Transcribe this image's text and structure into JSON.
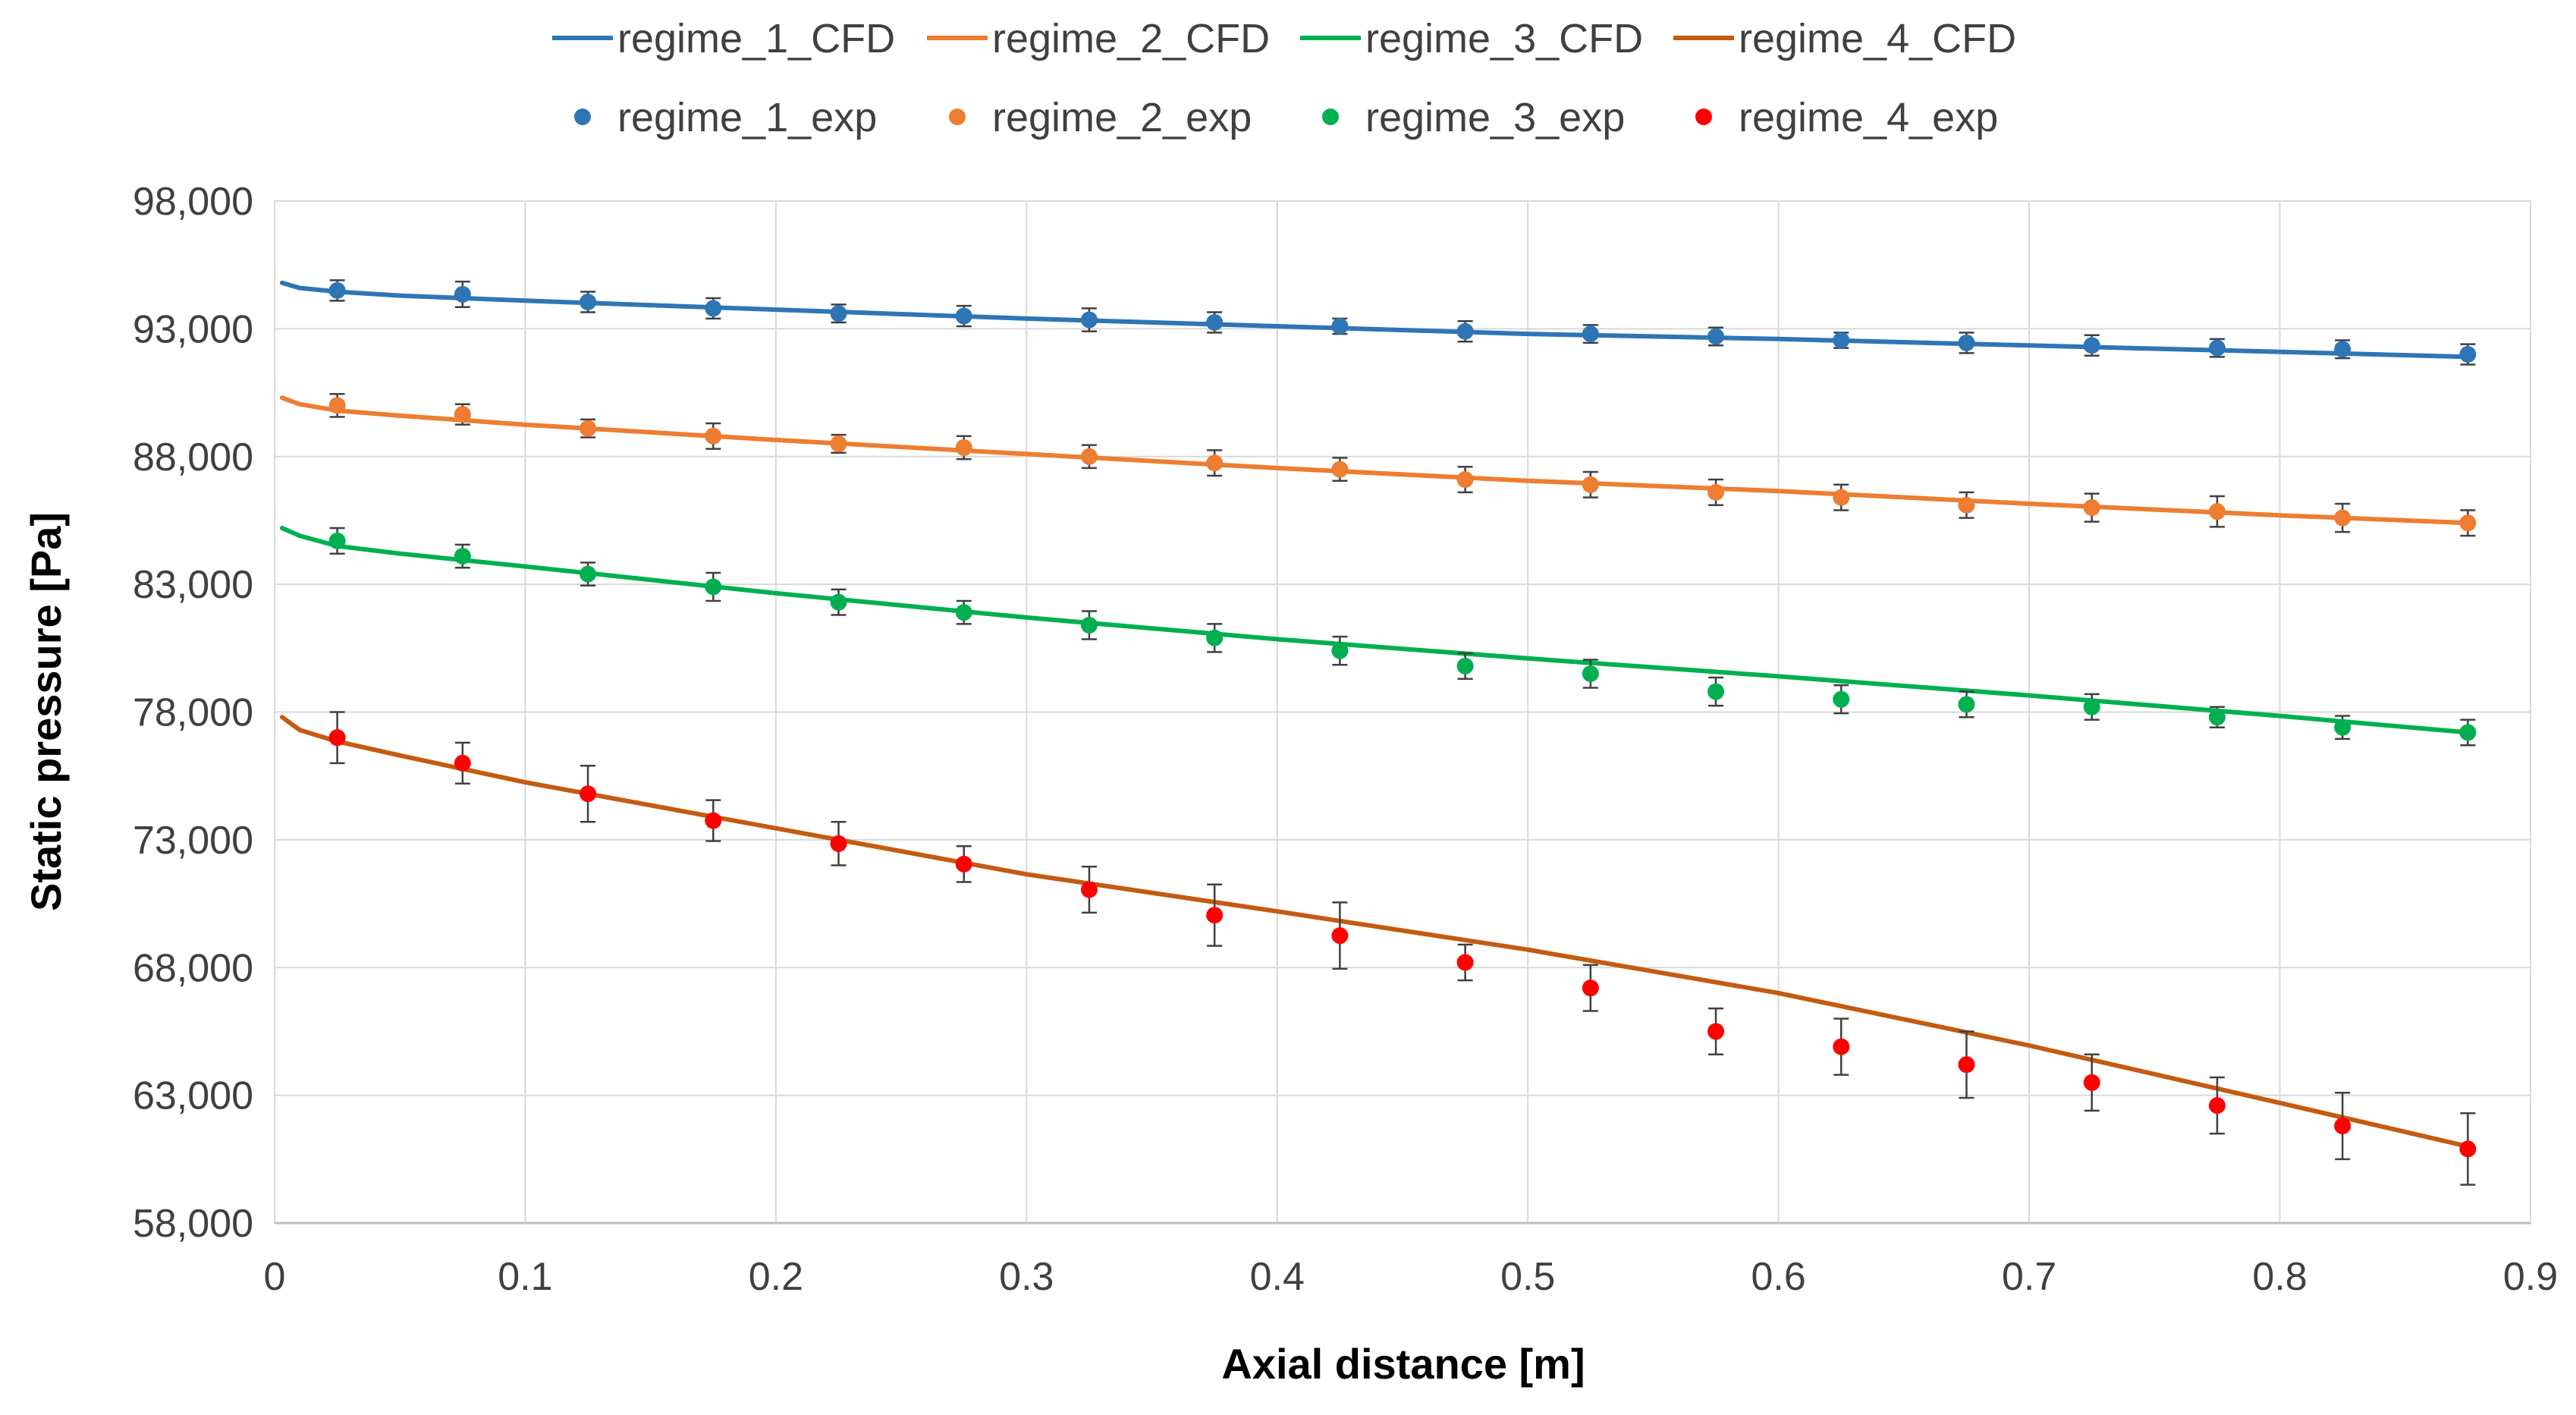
{
  "chart_data": {
    "type": "line",
    "xlabel": "Axial distance [m]",
    "ylabel": "Static pressure [Pa]",
    "xlim": [
      0,
      0.9
    ],
    "ylim": [
      58000,
      98000
    ],
    "x_ticks": [
      0,
      0.1,
      0.2,
      0.3,
      0.4,
      0.5,
      0.6,
      0.7,
      0.8,
      0.9
    ],
    "y_ticks": [
      58000,
      63000,
      68000,
      73000,
      78000,
      83000,
      88000,
      93000,
      98000
    ],
    "x_tick_labels": [
      "0",
      "0.1",
      "0.2",
      "0.3",
      "0.4",
      "0.5",
      "0.6",
      "0.7",
      "0.8",
      "0.9"
    ],
    "y_tick_labels": [
      "58,000",
      "63,000",
      "68,000",
      "73,000",
      "78,000",
      "83,000",
      "88,000",
      "93,000",
      "98,000"
    ],
    "grid": true,
    "legend_position": "top",
    "exp_x": [
      0.025,
      0.075,
      0.125,
      0.175,
      0.225,
      0.275,
      0.325,
      0.375,
      0.425,
      0.475,
      0.525,
      0.575,
      0.625,
      0.675,
      0.725,
      0.775,
      0.825,
      0.875
    ],
    "series": [
      {
        "name": "regime_1_CFD",
        "kind": "line",
        "color": "#2E75B6",
        "x": [
          0.003,
          0.01,
          0.025,
          0.05,
          0.1,
          0.2,
          0.3,
          0.4,
          0.5,
          0.6,
          0.7,
          0.8,
          0.875
        ],
        "y": [
          94800,
          94600,
          94450,
          94300,
          94100,
          93750,
          93400,
          93100,
          92800,
          92600,
          92350,
          92100,
          91900
        ]
      },
      {
        "name": "regime_2_CFD",
        "kind": "line",
        "color": "#ED7D31",
        "x": [
          0.003,
          0.01,
          0.025,
          0.05,
          0.1,
          0.2,
          0.3,
          0.4,
          0.5,
          0.6,
          0.7,
          0.8,
          0.875
        ],
        "y": [
          90300,
          90050,
          89800,
          89600,
          89250,
          88650,
          88100,
          87550,
          87050,
          86650,
          86150,
          85700,
          85400
        ]
      },
      {
        "name": "regime_3_CFD",
        "kind": "line",
        "color": "#00B050",
        "x": [
          0.003,
          0.01,
          0.025,
          0.05,
          0.1,
          0.2,
          0.3,
          0.4,
          0.5,
          0.6,
          0.7,
          0.8,
          0.875
        ],
        "y": [
          85200,
          84900,
          84500,
          84200,
          83700,
          82650,
          81700,
          80850,
          80100,
          79400,
          78650,
          77850,
          77200
        ]
      },
      {
        "name": "regime_4_CFD",
        "kind": "line",
        "color": "#C55A11",
        "x": [
          0.003,
          0.01,
          0.025,
          0.05,
          0.1,
          0.2,
          0.3,
          0.4,
          0.5,
          0.6,
          0.7,
          0.8,
          0.875
        ],
        "y": [
          77800,
          77300,
          76850,
          76300,
          75250,
          73450,
          71650,
          70200,
          68700,
          67000,
          64950,
          62700,
          61000
        ]
      },
      {
        "name": "regime_1_exp",
        "kind": "points",
        "color": "#2E75B6",
        "y": [
          94500,
          94350,
          94050,
          93800,
          93600,
          93500,
          93350,
          93250,
          93100,
          92900,
          92800,
          92700,
          92550,
          92450,
          92350,
          92250,
          92200,
          92000
        ],
        "err": [
          400,
          500,
          400,
          400,
          350,
          400,
          450,
          400,
          300,
          400,
          350,
          350,
          300,
          400,
          400,
          350,
          350,
          400
        ]
      },
      {
        "name": "regime_2_exp",
        "kind": "points",
        "color": "#ED7D31",
        "y": [
          90000,
          89650,
          89100,
          88800,
          88500,
          88350,
          88000,
          87750,
          87500,
          87100,
          86900,
          86600,
          86400,
          86100,
          86000,
          85850,
          85600,
          85400
        ],
        "err": [
          450,
          400,
          350,
          500,
          350,
          450,
          450,
          500,
          450,
          500,
          500,
          500,
          500,
          500,
          550,
          600,
          550,
          500
        ]
      },
      {
        "name": "regime_3_exp",
        "kind": "points",
        "color": "#00B050",
        "y": [
          84700,
          84100,
          83400,
          82900,
          82300,
          81900,
          81400,
          80900,
          80400,
          79800,
          79500,
          78800,
          78500,
          78300,
          78200,
          77800,
          77400,
          77200
        ],
        "err": [
          500,
          450,
          450,
          550,
          500,
          450,
          550,
          550,
          550,
          500,
          550,
          550,
          550,
          500,
          500,
          400,
          450,
          500
        ]
      },
      {
        "name": "regime_4_exp",
        "kind": "points",
        "color": "#FF0000",
        "y": [
          77000,
          76000,
          74800,
          73750,
          72850,
          72050,
          71050,
          70050,
          69250,
          68200,
          67200,
          65500,
          64900,
          64200,
          63500,
          62600,
          61800,
          60900
        ],
        "err": [
          1000,
          800,
          1100,
          800,
          850,
          700,
          900,
          1200,
          1300,
          700,
          900,
          900,
          1100,
          1300,
          1100,
          1100,
          1300,
          1400
        ]
      }
    ]
  }
}
